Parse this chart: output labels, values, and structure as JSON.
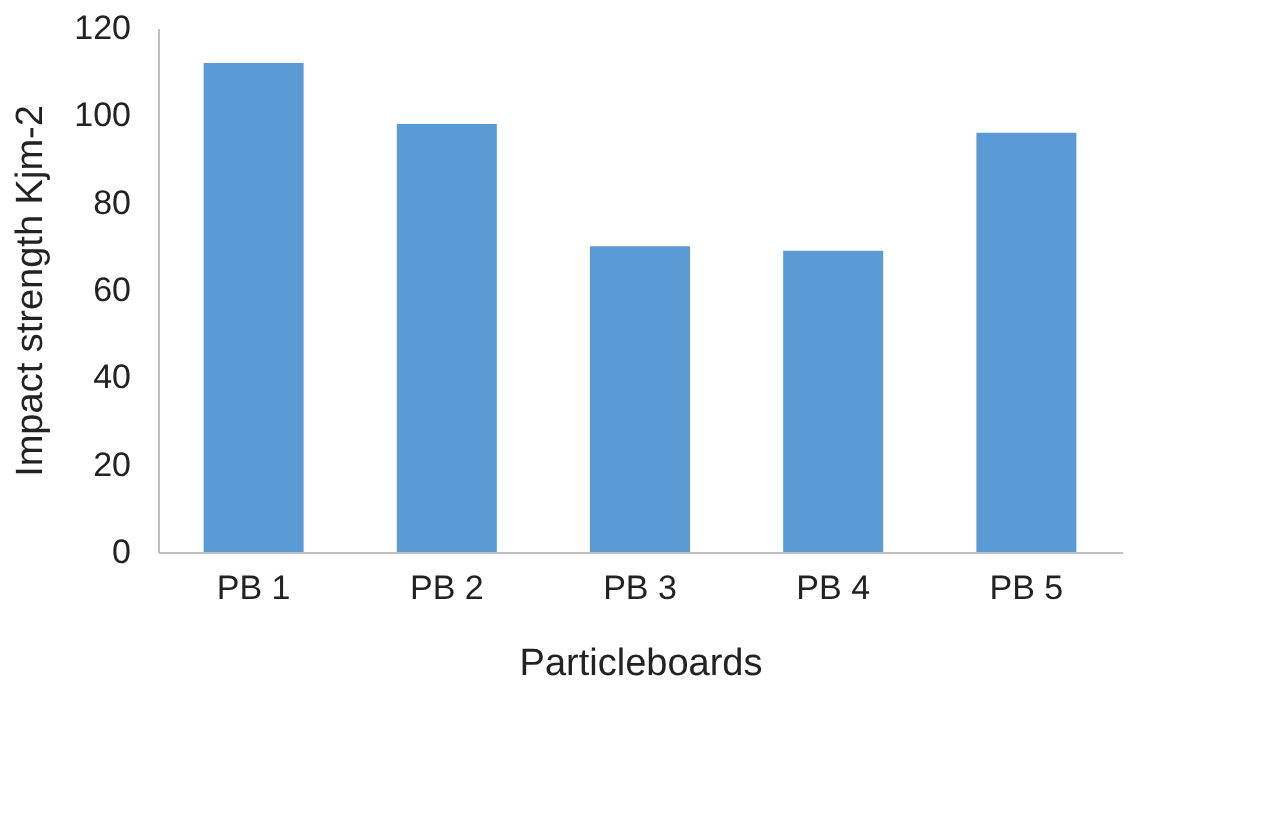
{
  "chart_data": {
    "type": "bar",
    "xlabel": "Particleboards",
    "ylabel": "Impact strength Kjm-2",
    "categories": [
      "PB 1",
      "PB 2",
      "PB 3",
      "PB 4",
      "PB 5"
    ],
    "values": [
      112,
      98,
      70,
      69,
      96
    ],
    "color": "#5b9bd5",
    "ylim": [
      0,
      120
    ],
    "yticks": [
      0,
      20,
      40,
      60,
      80,
      100,
      120
    ],
    "grid": false
  }
}
